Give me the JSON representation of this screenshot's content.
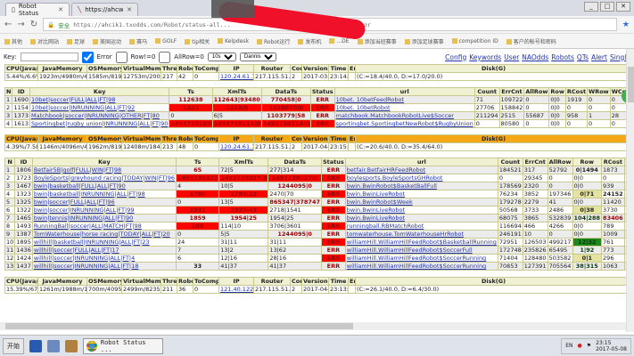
{
  "browser": {
    "tabs": [
      {
        "title": "Robot Status"
      },
      {
        "title": "https://ahcwsz1.txodds..."
      }
    ],
    "url_prefix": "安全",
    "url": "https://ahcik1.txodds.com/Robot/status-all...",
    "url_suffix": "=Error",
    "bookmarks": [
      "其他",
      "对比网站",
      "足球",
      "美国运动",
      "赛马",
      "GOLF",
      "tip相关",
      "Kelpdesk",
      "Robot运行",
      "发布机",
      "...DE",
      "添加当班赛事",
      "添加足球赛事",
      "competition ID",
      "客户的帐号和密码"
    ]
  },
  "controls": {
    "key_label": "Key:",
    "key_value": "",
    "error_label": "Error",
    "error_checked": true,
    "row0_label": "Row!=0",
    "allrow0_label": "AllRow=0",
    "interval": "10s",
    "user": "Dannis",
    "links": [
      "Config",
      "Keywords",
      "User",
      "NAOdds",
      "Robots",
      "QTs",
      "Alert",
      "Single"
    ]
  },
  "summary_headers": [
    "CPU(Java/OS)",
    "JavaMemory",
    "OSMemory",
    "VirtualMemory",
    "Thread",
    "Robot",
    "ToCompile",
    "IP",
    "Router",
    "Core",
    "Version",
    "Time",
    "Err",
    "Disk(G)"
  ],
  "summaries": [
    {
      "cpu": "5.44%/6.6%",
      "java": "1923m/4980m/4980m",
      "os": "1585m/8191m",
      "virt": "12753m/20043m",
      "thread": "217",
      "robot": "42",
      "compile": "0",
      "ip": "120.24.61.112",
      "router": "217.115.51.",
      "core": "2",
      "version": "2017-03-20",
      "time": "23:14:45",
      "err": "",
      "disk": "(C:=18.4/40.0, D:=17.0/20.0)"
    },
    {
      "cpu": "4.39%/7.58%",
      "java": "1146m/4096m/4096m",
      "os": "1962m/8191m",
      "virt": "12408m/18429m",
      "thread": "213",
      "robot": "48",
      "compile": "0",
      "ip": "120.24.61.123",
      "router": "217.115.51.",
      "core": "2",
      "version": "2017-04-17",
      "time": "23:15:14",
      "err": "",
      "disk": "(C:=20.6/40.0, D:=35.4/64.0)"
    },
    {
      "cpu": "15.39%/67.49%",
      "java": "1261m/1988m/1988m",
      "os": "700m/4095m",
      "virt": "2499m/8235m",
      "thread": "211",
      "robot": "36",
      "compile": "0",
      "ip": "121.40.122.131",
      "router": "217.115.51.",
      "core": "2",
      "version": "2017-04-18",
      "time": "23:13:47",
      "err": "",
      "disk": "(C:=26.1/40.0, D:=6.4/30.0)"
    }
  ],
  "robot_headers": [
    "N",
    "ID",
    "Key",
    "Ts",
    "XmlTs",
    "DataTs",
    "Status",
    "url",
    "Count",
    "ErrCnt",
    "AllRow",
    "Row",
    "RCost",
    "WRow",
    "WCost",
    "Full"
  ],
  "robot_tables": [
    {
      "rows": [
        {
          "n": "1",
          "id": "1690",
          "key": "10bet|soccer|FULL|ALL|FT|98",
          "ts": "112638",
          "xml": "112643|93480",
          "data": "770458|0",
          "status": "ERR",
          "url": "10bet. 10betFeedRobot",
          "count": "71",
          "errcnt": "109722",
          "allrow": "0",
          "row": "0|0",
          "rcost": "1919",
          "wrow": "0",
          "wcost": "0",
          "full": "1",
          "hl": {
            "ts": "red",
            "xml": "red",
            "data": "red"
          }
        },
        {
          "n": "2",
          "id": "1154",
          "key": "10bet|soccer|INRUNNING|ALL|FT|92",
          "ts": "1323",
          "xml": "1328|5",
          "data": "1328070|0",
          "status": "ERR",
          "url": "10bet. 10betRobot",
          "count": "27706",
          "errcnt": "158842",
          "allrow": "0",
          "row": "0|0",
          "rcost": "0",
          "wrow": "0",
          "wcost": "0",
          "full": "1",
          "hl": {
            "ts": "red",
            "xml": "red",
            "data": "red"
          }
        },
        {
          "n": "3",
          "id": "1373",
          "key": "Matchbook|soccer|INRUNNING|OTHER|FT|80",
          "ts": "0",
          "xml": "6|5",
          "data": "1103779|58",
          "status": "ERR",
          "url": "matchbook.MatchbookRobotLive$Soccer",
          "count": "211294",
          "errcnt": "2515",
          "allrow": "55687",
          "row": "0|0",
          "rcost": "958",
          "wrow": "1",
          "wcost": "28",
          "full": "1",
          "hl": {
            "data": "red"
          }
        },
        {
          "n": "4",
          "id": "1613",
          "key": "Sportingbet|rugby union|INRUNNING|ALL|FT|90",
          "ts": "1493738109",
          "xml": "1493738114|0",
          "data": "1493738114|0",
          "status": "ERR",
          "url": "sportingbet.SportingbetNewRobot$RugbyUnion",
          "count": "0",
          "errcnt": "80580",
          "allrow": "0",
          "row": "0|0",
          "rcost": "0",
          "wrow": "0",
          "wcost": "0",
          "full": "1",
          "hl": {
            "ts": "red",
            "xml": "red",
            "data": "red"
          }
        }
      ]
    },
    {
      "rows": [
        {
          "n": "1",
          "id": "1806",
          "key": "Betfair5B|golf|FULL|WIN|FT|98",
          "ts": "65",
          "xml": "72|5",
          "data": "277|314",
          "status": "ERR",
          "url": "betfair.BetfairHRFeedRobot",
          "count": "184521",
          "errcnt": "317",
          "allrow": "52792",
          "row": "0|1494",
          "rcost": "1873",
          "wrow": "3",
          "hl": {
            "ts": "red",
            "row": "yel"
          }
        },
        {
          "n": "2",
          "id": "1723",
          "key": "BoyleSports|greyhound racing|TODAY|WIN|FT|96",
          "ts": "1493738022",
          "xml": "1493738027|0",
          "data": "1493738027|0",
          "status": "ERR",
          "url": "boylesports.BoyleSportsGHRobot",
          "count": "0",
          "errcnt": "29345",
          "allrow": "0",
          "row": "0|0",
          "rcost": "0",
          "wrow": "0",
          "hl": {
            "ts": "red",
            "xml": "red",
            "data": "red"
          }
        },
        {
          "n": "3",
          "id": "1467",
          "key": "bwin|basketball|FULL|ALL|FT|90",
          "ts": "4",
          "xml": "10|5",
          "data": "1244095|0",
          "status": "ERR",
          "url": "bwin.BwinRobot$BasketBallFull",
          "count": "178569",
          "errcnt": "2320",
          "allrow": "0",
          "row": "0|0",
          "rcost": "939",
          "wrow": "0",
          "hl": {
            "data": "red"
          }
        },
        {
          "n": "4",
          "id": "1323",
          "key": "bwin|basketball|INRUNNING|ALL|FT|98",
          "ts": "1780",
          "xml": "1789|22",
          "data": "2470|70",
          "status": "ERR",
          "url": "bwin.BwinLiveRobot",
          "count": "76234",
          "errcnt": "3852",
          "allrow": "197346",
          "row": "0|71",
          "rcost": "24152",
          "wrow": "7",
          "hl": {
            "ts": "red",
            "xml": "red",
            "row": "yel",
            "rcost": "bold"
          }
        },
        {
          "n": "5",
          "id": "1325",
          "key": "bwin|soccer|FULL|ALL|FT|96",
          "ts": "0",
          "xml": "13|5",
          "data": "865347|378747",
          "status": "ERR",
          "url": "bwin.BwinRobot$Week",
          "count": "179278",
          "errcnt": "2279",
          "allrow": "41",
          "row": "0|0",
          "rcost": "11420",
          "wrow": "41",
          "hl": {
            "data": "red"
          }
        },
        {
          "n": "6",
          "id": "1322",
          "key": "bwin|soccer|INRUNNING|ALL|FT|99",
          "ts": "1931",
          "xml": "1939|43",
          "data": "2718|1541",
          "status": "ERR",
          "url": "bwin.BwinLiveRobot",
          "count": "50568",
          "errcnt": "3733",
          "allrow": "2486",
          "row": "0|38",
          "rcost": "3730",
          "wrow": "2",
          "hl": {
            "ts": "red",
            "xml": "red",
            "row": "yel"
          }
        },
        {
          "n": "7",
          "id": "1465",
          "key": "bwin|tennis|INRUNNING|ALL|FT|90",
          "ts": "1859",
          "xml": "1954|25",
          "data": "1954|25",
          "status": "ERR",
          "url": "bwin.BwinLiveRobot",
          "count": "68075",
          "errcnt": "3865",
          "allrow": "532839",
          "row": "104|288",
          "rcost": "83406",
          "wrow": "104",
          "hl": {
            "ts": "red",
            "xml": "red",
            "row": "grn",
            "rcost": "red"
          }
        },
        {
          "n": "8",
          "id": "1493",
          "key": "RunningBall|soccer|ALL|MATCH|FT|98",
          "ts": "109",
          "xml": "114|10",
          "data": "3706|3601",
          "status": "ERR",
          "url": "runningball.RBMatchRobot",
          "count": "116694",
          "errcnt": "466",
          "allrow": "4266",
          "row": "0|0",
          "rcost": "789",
          "wrow": "178",
          "hl": {
            "ts": "red"
          }
        },
        {
          "n": "9",
          "id": "1387",
          "key": "TomWaterhouse|horse racing|TODAY|ALL|FT|20",
          "ts": "0",
          "xml": "5|5",
          "data": "1244095|0",
          "status": "ERR",
          "url": "tomwaterhouse.TomWaterhouseHrRobot",
          "count": "246191",
          "errcnt": "10",
          "allrow": "0",
          "row": "0|0",
          "rcost": "1009",
          "wrow": "0",
          "hl": {
            "data": "red"
          }
        },
        {
          "n": "10",
          "id": "1895",
          "key": "willhill|basketball|INRUNNING|ALL|FT|23",
          "ts": "24",
          "xml": "31|11",
          "data": "31|11",
          "status": "ERR",
          "url": "williamHill.WilliamHillFeedRobot$BasketballRunning",
          "count": "72951",
          "errcnt": "126503",
          "allrow": "499217",
          "row": "12|32",
          "rcost": "761",
          "wrow": "12",
          "hl": {
            "row": "grn"
          }
        },
        {
          "n": "11",
          "id": "1436",
          "key": "willhill|soccer|FULL|ALL|FT|17",
          "ts": "7",
          "xml": "13|2",
          "data": "13|62",
          "status": "ERR",
          "url": "williamHill.WilliamHillFeedRobot$SoccerFull",
          "count": "172748",
          "errcnt": "235826",
          "allrow": "65495",
          "row": "1|92",
          "rcost": "773",
          "wrow": "1",
          "hl": {
            "row": "grn"
          }
        },
        {
          "n": "12",
          "id": "1424",
          "key": "willhill|soccer|INRUNNING|ALL|FT|4",
          "ts": "6",
          "xml": "12|16",
          "data": "28|16",
          "status": "ERR",
          "url": "williamHill.WilliamHillFeedRobot$SoccerRunning",
          "count": "71404",
          "errcnt": "128480",
          "allrow": "503582",
          "row": "0|1",
          "rcost": "296",
          "wrow": "1",
          "hl": {
            "row": "yel"
          }
        },
        {
          "n": "13",
          "id": "1437",
          "key": "willhill|soccer|INRUNNING|ALL|FT|18",
          "ts": "33",
          "xml": "41|37",
          "data": "41|37",
          "status": "ERR",
          "url": "williamHill.WilliamHillFeedRobot$SoccerRunning",
          "count": "70853",
          "errcnt": "127391",
          "allrow": "705564",
          "row": "38|315",
          "rcost": "1063",
          "wrow": "38",
          "hl": {
            "ts": "pink",
            "row": "grn"
          }
        }
      ]
    }
  ],
  "taskbar": {
    "start": "开始",
    "task": "Robot Status ...",
    "clock_time": "23:15",
    "clock_date": "2017-05-08",
    "lang": "EN"
  },
  "colors": {
    "error_red": "#ff0000",
    "warn_yellow": "#e4e4a0",
    "ok_green": "#1a8a1a",
    "summary_orange": "#f4a818"
  }
}
